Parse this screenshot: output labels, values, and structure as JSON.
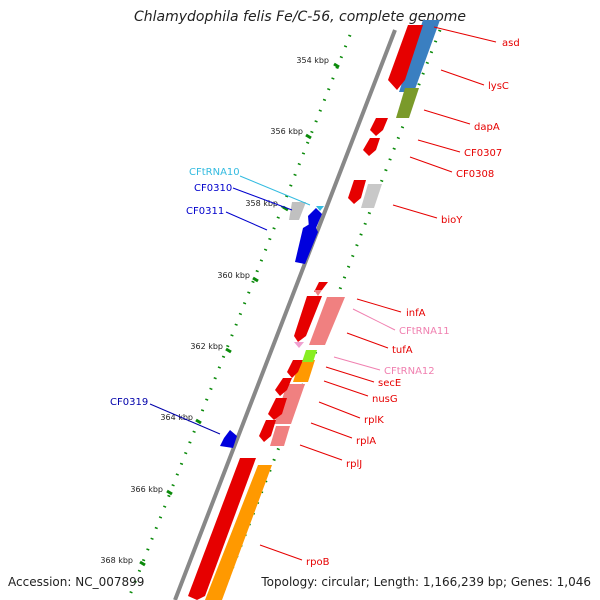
{
  "header": {
    "title": "Chlamydophila felis Fe/C-56, complete genome"
  },
  "footer": {
    "accession": "Accession: NC_007899",
    "topology": "Topology: circular; Length: 1,166,239 bp; Genes: 1,046"
  },
  "ticks": [
    {
      "label": "354 kbp"
    },
    {
      "label": "356 kbp"
    },
    {
      "label": "358 kbp"
    },
    {
      "label": "360 kbp"
    },
    {
      "label": "362 kbp"
    },
    {
      "label": "364 kbp"
    },
    {
      "label": "366 kbp"
    },
    {
      "label": "368 kbp"
    }
  ],
  "genes": [
    {
      "label": "asd",
      "color": "#e60000"
    },
    {
      "label": "lysC",
      "color": "#e60000"
    },
    {
      "label": "dapA",
      "color": "#e60000"
    },
    {
      "label": "CF0307",
      "color": "#e60000"
    },
    {
      "label": "CF0308",
      "color": "#e60000"
    },
    {
      "label": "bioY",
      "color": "#e60000"
    },
    {
      "label": "CFtRNA10",
      "color": "#33bbe0"
    },
    {
      "label": "CF0310",
      "color": "#0000cc"
    },
    {
      "label": "CF0311",
      "color": "#0000cc"
    },
    {
      "label": "infA",
      "color": "#e60000"
    },
    {
      "label": "CFtRNA11",
      "color": "#f080b0"
    },
    {
      "label": "tufA",
      "color": "#e60000"
    },
    {
      "label": "CFtRNA12",
      "color": "#f080b0"
    },
    {
      "label": "secE",
      "color": "#e60000"
    },
    {
      "label": "nusG",
      "color": "#e60000"
    },
    {
      "label": "rplK",
      "color": "#e60000"
    },
    {
      "label": "rplA",
      "color": "#e60000"
    },
    {
      "label": "rplJ",
      "color": "#e60000"
    },
    {
      "label": "CF0319",
      "color": "#0000aa"
    },
    {
      "label": "rpoB",
      "color": "#e60000"
    }
  ]
}
